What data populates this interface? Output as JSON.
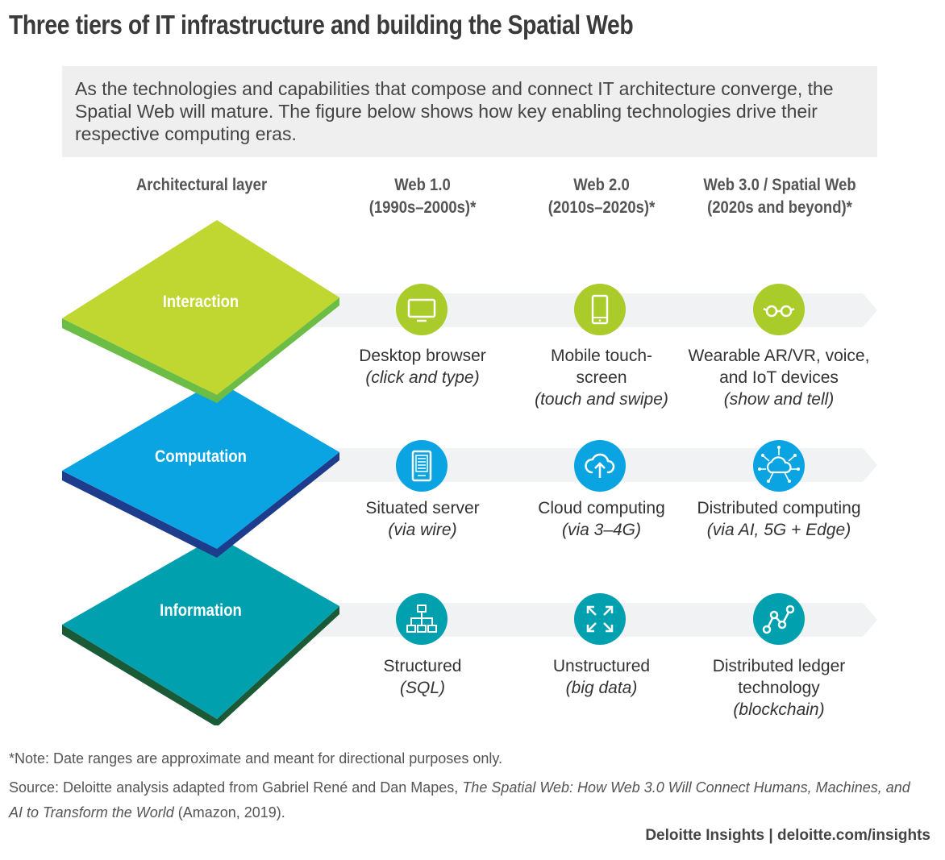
{
  "title": "Three tiers of IT infrastructure and building the Spatial Web",
  "intro": "As the technologies and capabilities that compose and connect IT architecture converge, the Spatial Web will mature. The figure below shows how key enabling technologies drive their respective computing eras.",
  "columns": {
    "layer_header": "Architectural layer",
    "web1": {
      "line1": "Web 1.0",
      "line2": "(1990s–2000s)*"
    },
    "web2": {
      "line1": "Web 2.0",
      "line2": "(2010s–2020s)*"
    },
    "web3": {
      "line1": "Web 3.0 / Spatial Web",
      "line2": "(2020s and beyond)*"
    }
  },
  "layers": [
    {
      "name": "Interaction",
      "colors": {
        "top": "#bfd730",
        "side": "#6cbd45",
        "icon": "#a9cc2a"
      },
      "cells": [
        {
          "icon": "desktop-monitor-icon",
          "main": "Desktop browser",
          "sub": "(click and type)"
        },
        {
          "icon": "smartphone-icon",
          "main": "Mobile touch-\nscreen",
          "sub": "(touch and swipe)"
        },
        {
          "icon": "ar-glasses-icon",
          "main": "Wearable AR/VR, voice,\nand IoT devices",
          "sub": "(show and tell)"
        }
      ]
    },
    {
      "name": "Computation",
      "colors": {
        "top": "#0aa4e3",
        "side": "#1e3c8c",
        "icon": "#0aa4e3"
      },
      "cells": [
        {
          "icon": "server-icon",
          "main": "Situated server",
          "sub": "(via wire)"
        },
        {
          "icon": "cloud-upload-icon",
          "main": "Cloud computing",
          "sub": "(via 3–4G)"
        },
        {
          "icon": "distributed-cloud-icon",
          "main": "Distributed computing",
          "sub": "(via AI, 5G + Edge)"
        }
      ]
    },
    {
      "name": "Information",
      "colors": {
        "top": "#00a0af",
        "side": "#1a5a36",
        "icon": "#00a0af"
      },
      "cells": [
        {
          "icon": "hierarchy-tree-icon",
          "main": "Structured",
          "sub": "(SQL)"
        },
        {
          "icon": "expand-arrows-icon",
          "main": "Unstructured",
          "sub": "(big data)"
        },
        {
          "icon": "node-chain-icon",
          "main": "Distributed ledger\ntechnology",
          "sub": "(blockchain)"
        }
      ]
    }
  ],
  "footer": {
    "note": "*Note: Date ranges are approximate and meant for directional purposes only.",
    "source_prefix": "Source: Deloitte analysis adapted from Gabriel René and Dan Mapes, ",
    "source_title": "The Spatial Web: How Web 3.0 Will Connect Humans, Machines, and AI to Transform the World",
    "source_suffix": " (Amazon, 2019).",
    "brand": "Deloitte Insights | deloitte.com/insights"
  }
}
